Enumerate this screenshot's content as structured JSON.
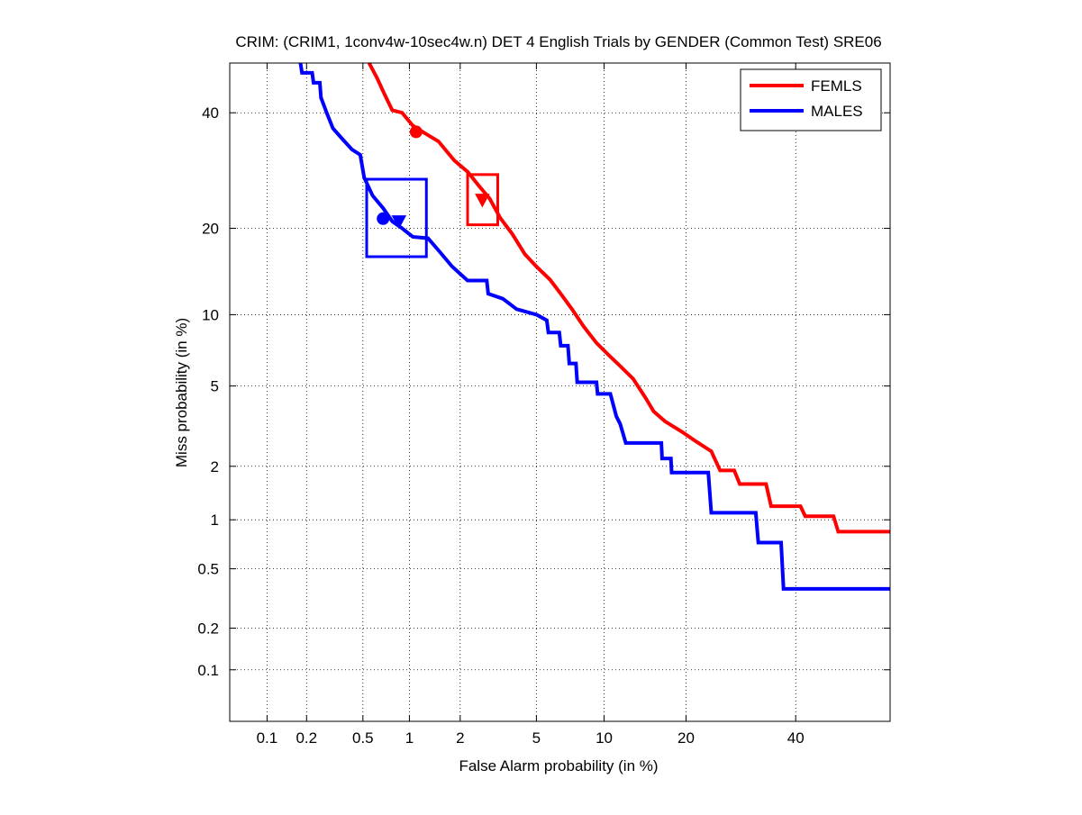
{
  "chart_data": {
    "type": "line",
    "title": "CRIM: (CRIM1, 1conv4w-10sec4w.n) DET 4 English Trials by GENDER (Common Test) SRE06",
    "xlabel": "False Alarm probability (in %)",
    "ylabel": "Miss probability (in %)",
    "scale": "normal-deviate (probit)",
    "xlim": [
      0.05,
      60
    ],
    "ylim": [
      0.04,
      50
    ],
    "x_ticks": [
      0.1,
      0.2,
      0.5,
      1,
      2,
      5,
      10,
      20,
      40
    ],
    "x_tick_labels": [
      "0.1",
      "0.2",
      "0.5",
      "1",
      "2",
      "5",
      "10",
      "20",
      "40"
    ],
    "y_ticks": [
      0.1,
      0.2,
      0.5,
      1,
      2,
      5,
      10,
      20,
      40
    ],
    "y_tick_labels": [
      "0.1",
      "0.2",
      "0.5",
      "1",
      "2",
      "5",
      "10",
      "20",
      "40"
    ],
    "grid": true,
    "legend_placement": "top-right",
    "series": [
      {
        "name": "FEMLS",
        "color": "#ff0000",
        "points": [
          [
            0.55,
            52
          ],
          [
            0.62,
            47
          ],
          [
            0.7,
            43.5
          ],
          [
            0.78,
            40.5
          ],
          [
            0.9,
            40
          ],
          [
            1.05,
            37.5
          ],
          [
            1.25,
            36
          ],
          [
            1.5,
            34.5
          ],
          [
            1.85,
            31
          ],
          [
            2.2,
            29
          ],
          [
            2.55,
            26.5
          ],
          [
            2.9,
            24.5
          ],
          [
            3.3,
            21.5
          ],
          [
            3.8,
            19.2
          ],
          [
            4.4,
            16.5
          ],
          [
            5.0,
            15
          ],
          [
            5.8,
            13.5
          ],
          [
            6.5,
            12
          ],
          [
            7.3,
            10.5
          ],
          [
            8.2,
            9
          ],
          [
            9.3,
            7.7
          ],
          [
            10.5,
            6.8
          ],
          [
            11.5,
            6.2
          ],
          [
            13,
            5.4
          ],
          [
            14.5,
            4.4
          ],
          [
            15.5,
            3.8
          ],
          [
            17,
            3.4
          ],
          [
            19.5,
            3.0
          ],
          [
            21.5,
            2.7
          ],
          [
            24,
            2.4
          ],
          [
            25.5,
            1.9
          ],
          [
            28,
            1.9
          ],
          [
            29,
            1.6
          ],
          [
            34,
            1.6
          ],
          [
            35,
            1.2
          ],
          [
            41,
            1.2
          ],
          [
            42,
            1.05
          ],
          [
            48,
            1.05
          ],
          [
            49,
            0.85
          ],
          [
            60,
            0.85
          ]
        ]
      },
      {
        "name": "MALES",
        "color": "#0000ff",
        "points": [
          [
            0.18,
            52
          ],
          [
            0.185,
            48
          ],
          [
            0.22,
            48
          ],
          [
            0.225,
            46
          ],
          [
            0.25,
            46
          ],
          [
            0.255,
            43
          ],
          [
            0.28,
            40
          ],
          [
            0.31,
            37
          ],
          [
            0.36,
            35
          ],
          [
            0.42,
            33
          ],
          [
            0.48,
            32
          ],
          [
            0.51,
            28
          ],
          [
            0.58,
            25
          ],
          [
            0.68,
            23
          ],
          [
            0.78,
            21
          ],
          [
            0.9,
            20
          ],
          [
            1.05,
            18.8
          ],
          [
            1.3,
            18.6
          ],
          [
            1.5,
            17
          ],
          [
            1.8,
            15
          ],
          [
            2.2,
            13.4
          ],
          [
            2.8,
            13.4
          ],
          [
            2.85,
            12
          ],
          [
            3.4,
            11.5
          ],
          [
            4.0,
            10.5
          ],
          [
            5.0,
            10
          ],
          [
            5.6,
            9.5
          ],
          [
            5.7,
            8.5
          ],
          [
            6.4,
            8.5
          ],
          [
            6.5,
            7.5
          ],
          [
            7.0,
            7.5
          ],
          [
            7.1,
            6.3
          ],
          [
            7.6,
            6.3
          ],
          [
            7.7,
            5.2
          ],
          [
            9.3,
            5.2
          ],
          [
            9.4,
            4.6
          ],
          [
            10.6,
            4.6
          ],
          [
            11.2,
            3.6
          ],
          [
            11.6,
            3.3
          ],
          [
            12.2,
            2.65
          ],
          [
            16.5,
            2.65
          ],
          [
            16.6,
            2.2
          ],
          [
            17.8,
            2.2
          ],
          [
            17.9,
            1.85
          ],
          [
            23.5,
            1.85
          ],
          [
            24,
            1.1
          ],
          [
            32,
            1.1
          ],
          [
            32.5,
            0.73
          ],
          [
            37,
            0.73
          ],
          [
            37.5,
            0.37
          ],
          [
            60,
            0.37
          ]
        ]
      }
    ],
    "markers": [
      {
        "series": "FEMLS",
        "shape": "circle",
        "x": 1.1,
        "y": 36.3
      },
      {
        "series": "FEMLS",
        "shape": "triangle-down",
        "x": 2.65,
        "y": 24.3
      },
      {
        "series": "MALES",
        "shape": "circle",
        "x": 0.68,
        "y": 21.4
      },
      {
        "series": "MALES",
        "shape": "triangle-down",
        "x": 0.86,
        "y": 21.0
      }
    ],
    "boxes": [
      {
        "series": "FEMLS",
        "x_range": [
          2.2,
          3.2
        ],
        "y_range": [
          20.5,
          28.5
        ]
      },
      {
        "series": "MALES",
        "x_range": [
          0.53,
          1.27
        ],
        "y_range": [
          16.2,
          27.7
        ]
      }
    ]
  }
}
